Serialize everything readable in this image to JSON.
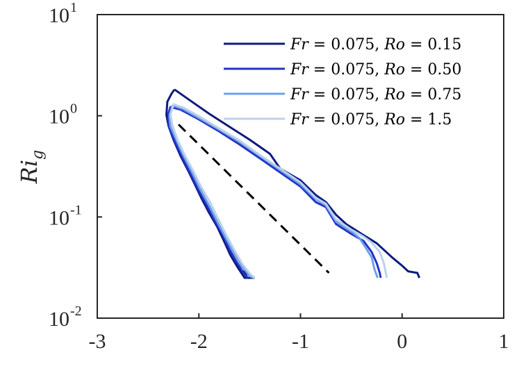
{
  "chart_data": {
    "type": "line",
    "title": "",
    "xlabel": "",
    "ylabel": "Ri_g",
    "ylabel_parts": {
      "base": "Ri",
      "sub": "g"
    },
    "xlim": [
      -3,
      1
    ],
    "ylim": [
      0.01,
      10
    ],
    "yscale": "log",
    "grid": false,
    "legend_position": "top-right",
    "x_ticks": [
      {
        "value": -3,
        "label": "-3"
      },
      {
        "value": -2,
        "label": "-2"
      },
      {
        "value": -1,
        "label": "-1"
      },
      {
        "value": 0,
        "label": "0"
      },
      {
        "value": 1,
        "label": "1"
      }
    ],
    "y_ticks": [
      {
        "value": 0.01,
        "base": "10",
        "exp": "-2"
      },
      {
        "value": 0.1,
        "base": "10",
        "exp": "-1"
      },
      {
        "value": 1,
        "base": "10",
        "exp": "0"
      },
      {
        "value": 10,
        "base": "10",
        "exp": "1"
      }
    ],
    "series": [
      {
        "name": "Fr = 0.075, Ro = 0.15",
        "legend": {
          "fr": "0.075",
          "ro": "0.15"
        },
        "color": "#0d1a7f",
        "points": [
          [
            -2.24,
            1.82
          ],
          [
            -2.27,
            1.65
          ],
          [
            -2.31,
            1.38
          ],
          [
            -2.32,
            1.02
          ],
          [
            -2.3,
            0.8
          ],
          [
            -2.25,
            0.58
          ],
          [
            -2.18,
            0.4
          ],
          [
            -2.1,
            0.28
          ],
          [
            -2.04,
            0.21
          ],
          [
            -1.97,
            0.15
          ],
          [
            -1.9,
            0.11
          ],
          [
            -1.82,
            0.08
          ],
          [
            -1.75,
            0.057
          ],
          [
            -1.69,
            0.042
          ],
          [
            -1.62,
            0.032
          ],
          [
            -1.55,
            0.025
          ],
          [
            -1.46,
            0.025
          ],
          [
            -1.56,
            0.029
          ],
          [
            -1.52,
            0.025
          ]
        ],
        "upper": [
          [
            -2.24,
            1.82
          ],
          [
            -2.1,
            1.45
          ],
          [
            -1.9,
            1.05
          ],
          [
            -1.7,
            0.78
          ],
          [
            -1.5,
            0.58
          ],
          [
            -1.3,
            0.42
          ],
          [
            -1.2,
            0.3
          ],
          [
            -1.0,
            0.23
          ],
          [
            -0.85,
            0.165
          ],
          [
            -0.75,
            0.14
          ],
          [
            -0.65,
            0.105
          ],
          [
            -0.55,
            0.085
          ],
          [
            -0.4,
            0.068
          ],
          [
            -0.25,
            0.055
          ],
          [
            -0.1,
            0.04
          ],
          [
            0.0,
            0.033
          ],
          [
            0.06,
            0.029
          ],
          [
            0.15,
            0.028
          ],
          [
            0.17,
            0.025
          ]
        ]
      },
      {
        "name": "Fr = 0.075, Ro = 0.50",
        "legend": {
          "fr": "0.075",
          "ro": "0.50"
        },
        "color": "#2233c7",
        "points": [
          [
            -2.3,
            1.05
          ],
          [
            -2.3,
            0.82
          ],
          [
            -2.25,
            0.6
          ],
          [
            -2.18,
            0.42
          ],
          [
            -2.1,
            0.29
          ],
          [
            -2.02,
            0.2
          ],
          [
            -1.93,
            0.135
          ],
          [
            -1.85,
            0.095
          ],
          [
            -1.77,
            0.068
          ],
          [
            -1.7,
            0.048
          ],
          [
            -1.63,
            0.036
          ],
          [
            -1.56,
            0.028
          ],
          [
            -1.52,
            0.025
          ]
        ],
        "upper": [
          [
            -2.3,
            1.05
          ],
          [
            -2.28,
            1.22
          ],
          [
            -2.18,
            1.15
          ],
          [
            -2.0,
            0.92
          ],
          [
            -1.8,
            0.7
          ],
          [
            -1.6,
            0.52
          ],
          [
            -1.4,
            0.38
          ],
          [
            -1.2,
            0.275
          ],
          [
            -1.0,
            0.2
          ],
          [
            -0.85,
            0.14
          ],
          [
            -0.75,
            0.125
          ],
          [
            -0.65,
            0.085
          ],
          [
            -0.5,
            0.068
          ],
          [
            -0.38,
            0.058
          ],
          [
            -0.3,
            0.045
          ],
          [
            -0.25,
            0.035
          ],
          [
            -0.22,
            0.028
          ],
          [
            -0.21,
            0.025
          ]
        ]
      },
      {
        "name": "Fr = 0.075, Ro = 0.75",
        "legend": {
          "fr": "0.075",
          "ro": "0.75"
        },
        "color": "#6f9fe8",
        "points": [
          [
            -2.29,
            1.0
          ],
          [
            -2.28,
            0.78
          ],
          [
            -2.22,
            0.57
          ],
          [
            -2.15,
            0.4
          ],
          [
            -2.07,
            0.28
          ],
          [
            -1.99,
            0.19
          ],
          [
            -1.9,
            0.13
          ],
          [
            -1.82,
            0.09
          ],
          [
            -1.74,
            0.063
          ],
          [
            -1.66,
            0.045
          ],
          [
            -1.58,
            0.033
          ],
          [
            -1.5,
            0.026
          ],
          [
            -1.46,
            0.025
          ]
        ],
        "upper": [
          [
            -2.29,
            1.0
          ],
          [
            -2.26,
            1.26
          ],
          [
            -2.16,
            1.17
          ],
          [
            -2.0,
            0.95
          ],
          [
            -1.8,
            0.73
          ],
          [
            -1.6,
            0.55
          ],
          [
            -1.4,
            0.4
          ],
          [
            -1.2,
            0.29
          ],
          [
            -1.0,
            0.21
          ],
          [
            -0.85,
            0.15
          ],
          [
            -0.75,
            0.13
          ],
          [
            -0.65,
            0.09
          ],
          [
            -0.5,
            0.072
          ],
          [
            -0.42,
            0.062
          ],
          [
            -0.36,
            0.05
          ],
          [
            -0.3,
            0.04
          ],
          [
            -0.27,
            0.03
          ],
          [
            -0.24,
            0.025
          ]
        ]
      },
      {
        "name": "Fr = 0.075, Ro = 1.5",
        "legend": {
          "fr": "0.075",
          "ro": "1.5"
        },
        "color": "#bcd2ec",
        "points": [
          [
            -2.28,
            1.02
          ],
          [
            -2.26,
            0.8
          ],
          [
            -2.21,
            0.58
          ],
          [
            -2.14,
            0.41
          ],
          [
            -2.06,
            0.29
          ],
          [
            -1.98,
            0.2
          ],
          [
            -1.89,
            0.14
          ],
          [
            -1.81,
            0.096
          ],
          [
            -1.73,
            0.066
          ],
          [
            -1.65,
            0.047
          ],
          [
            -1.57,
            0.034
          ],
          [
            -1.49,
            0.027
          ],
          [
            -1.45,
            0.025
          ]
        ],
        "upper": [
          [
            -2.28,
            1.02
          ],
          [
            -2.25,
            1.3
          ],
          [
            -2.15,
            1.2
          ],
          [
            -2.0,
            0.99
          ],
          [
            -1.8,
            0.75
          ],
          [
            -1.6,
            0.57
          ],
          [
            -1.4,
            0.41
          ],
          [
            -1.2,
            0.3
          ],
          [
            -1.0,
            0.22
          ],
          [
            -0.85,
            0.155
          ],
          [
            -0.75,
            0.135
          ],
          [
            -0.65,
            0.095
          ],
          [
            -0.5,
            0.075
          ],
          [
            -0.38,
            0.064
          ],
          [
            -0.3,
            0.056
          ],
          [
            -0.22,
            0.045
          ],
          [
            -0.18,
            0.035
          ],
          [
            -0.16,
            0.028
          ],
          [
            -0.15,
            0.025
          ]
        ]
      }
    ],
    "reference_line": {
      "style": "dashed",
      "color": "#000000",
      "points": [
        [
          -2.2,
          0.82
        ],
        [
          -0.72,
          0.028
        ]
      ]
    }
  }
}
